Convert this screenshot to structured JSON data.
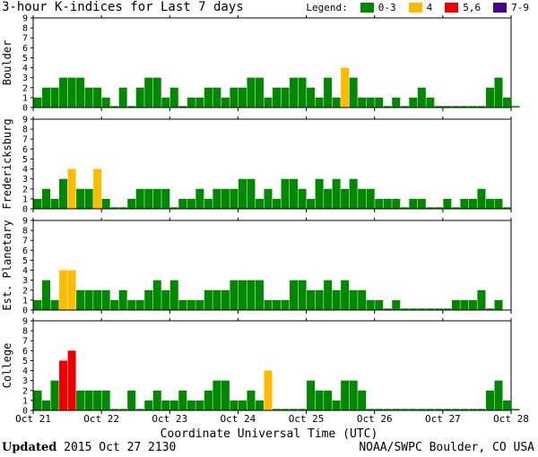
{
  "header": {
    "title": "3-hour K-indices for Last 7 days",
    "legend_label": "Legend:"
  },
  "footer": {
    "updated_label": "Updated",
    "updated_value": "2015 Oct 27 2130",
    "source": "NOAA/SWPC Boulder, CO USA"
  },
  "colors": {
    "quiet": "#008800",
    "active": "#ffbb00",
    "storm": "#ee0000",
    "severe": "#440088",
    "border": "#000000"
  },
  "chart_data": {
    "type": "bar",
    "xlabel": "Coordinate Universal Time (UTC)",
    "ylim": [
      0,
      9
    ],
    "yticks": [
      0,
      1,
      2,
      3,
      4,
      5,
      6,
      7,
      8,
      9
    ],
    "x_ticks": [
      "Oct 21",
      "Oct 22",
      "Oct 23",
      "Oct 24",
      "Oct 25",
      "Oct 26",
      "Oct 27",
      "Oct 28"
    ],
    "legend": [
      {
        "label": "0-3",
        "color_key": "quiet"
      },
      {
        "label": "4",
        "color_key": "active"
      },
      {
        "label": "5,6",
        "color_key": "storm"
      },
      {
        "label": "7-9",
        "color_key": "severe"
      }
    ],
    "panels": [
      {
        "name": "Boulder",
        "values": [
          1,
          2,
          2,
          3,
          3,
          3,
          2,
          2,
          1,
          0,
          2,
          0,
          2,
          3,
          3,
          1,
          2,
          0,
          1,
          1,
          2,
          2,
          1,
          2,
          2,
          3,
          3,
          1,
          2,
          2,
          3,
          3,
          2,
          1,
          3,
          1,
          4,
          3,
          1,
          1,
          1,
          0,
          1,
          0,
          1,
          2,
          1,
          0,
          0,
          0,
          0,
          0,
          0,
          2,
          3,
          1,
          0
        ]
      },
      {
        "name": "Fredericksburg",
        "values": [
          1,
          2,
          1,
          3,
          4,
          2,
          2,
          4,
          1,
          0,
          0,
          1,
          2,
          2,
          2,
          2,
          0,
          1,
          1,
          2,
          1,
          2,
          2,
          2,
          3,
          3,
          1,
          2,
          1,
          3,
          3,
          2,
          1,
          3,
          2,
          3,
          2,
          3,
          2,
          2,
          1,
          1,
          1,
          0,
          1,
          1,
          0,
          0,
          1,
          0,
          1,
          1,
          2,
          1,
          1,
          0
        ]
      },
      {
        "name": "Est. Planetary",
        "values": [
          1,
          3,
          1,
          4,
          4,
          2,
          2,
          2,
          2,
          1,
          2,
          1,
          1,
          2,
          3,
          2,
          3,
          1,
          1,
          1,
          2,
          2,
          2,
          3,
          3,
          3,
          3,
          1,
          1,
          1,
          3,
          3,
          2,
          2,
          3,
          2,
          3,
          2,
          2,
          1,
          1,
          0,
          1,
          0,
          0,
          0,
          0,
          0,
          0,
          1,
          1,
          1,
          2,
          0,
          1
        ]
      },
      {
        "name": "College",
        "values": [
          2,
          1,
          3,
          5,
          6,
          2,
          2,
          2,
          2,
          0,
          0,
          2,
          0,
          1,
          2,
          1,
          1,
          2,
          1,
          1,
          2,
          3,
          3,
          1,
          1,
          2,
          1,
          4,
          0,
          0,
          0,
          0,
          3,
          2,
          2,
          1,
          3,
          3,
          2,
          0,
          0,
          0,
          0,
          0,
          0,
          0,
          0,
          0,
          0,
          0,
          0,
          0,
          0,
          2,
          3,
          1,
          0
        ]
      }
    ]
  }
}
